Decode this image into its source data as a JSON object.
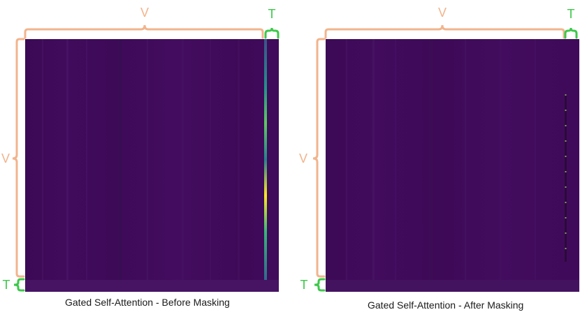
{
  "colors": {
    "v_bracket": "#f2b48c",
    "t_bracket": "#3cc84a",
    "heatmap_base": "#3f0a57",
    "caption_text": "#1a1a1a"
  },
  "panels": [
    {
      "caption": "Gated Self-Attention - Before Masking",
      "v_label_top": "V",
      "t_label_top": "T",
      "v_label_side": "V",
      "t_label_side": "T"
    },
    {
      "caption": "Gated Self-Attention - After Masking",
      "v_label_top": "V",
      "t_label_top": "T",
      "v_label_side": "V",
      "t_label_side": "T"
    }
  ]
}
